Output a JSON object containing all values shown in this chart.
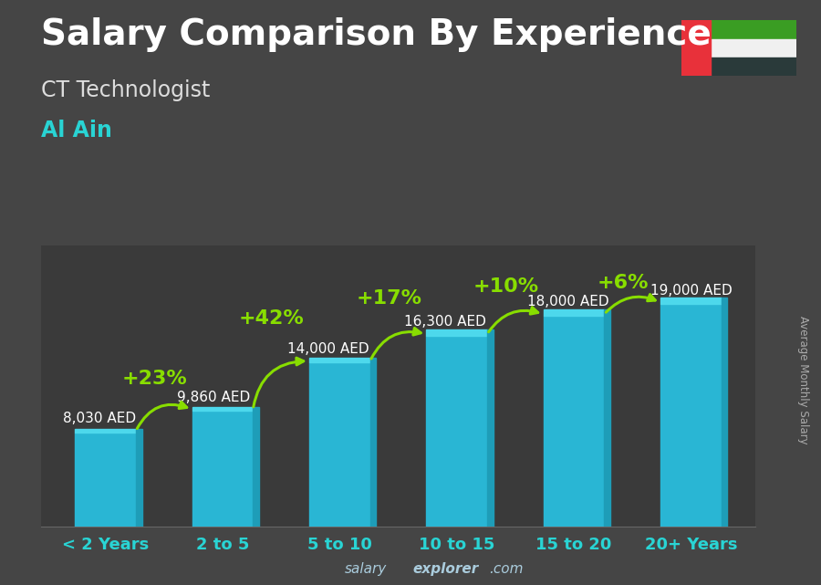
{
  "title": "Salary Comparison By Experience",
  "subtitle": "CT Technologist",
  "city": "Al Ain",
  "ylabel": "Average Monthly Salary",
  "footer_plain": "salary",
  "footer_bold": "explorer",
  "footer_end": ".com",
  "categories": [
    "< 2 Years",
    "2 to 5",
    "5 to 10",
    "10 to 15",
    "15 to 20",
    "20+ Years"
  ],
  "values": [
    8030,
    9860,
    14000,
    16300,
    18000,
    19000
  ],
  "bar_color": "#29b6d4",
  "bar_color_light": "#4dd8ec",
  "bar_color_dark": "#1a8fa3",
  "bar_color_right": "#1e9db8",
  "bg_color": "#3a3a3a",
  "title_color": "#ffffff",
  "subtitle_color": "#dddddd",
  "city_color": "#29d4d4",
  "percent_color": "#88dd00",
  "value_label_color": "#ffffff",
  "tick_color": "#29d4d4",
  "ylabel_color": "#aaaaaa",
  "footer_color": "#aaccdd",
  "value_labels": [
    "8,030 AED",
    "9,860 AED",
    "14,000 AED",
    "16,300 AED",
    "18,000 AED",
    "19,000 AED"
  ],
  "percent_labels": [
    "+23%",
    "+42%",
    "+17%",
    "+10%",
    "+6%"
  ],
  "title_fontsize": 28,
  "subtitle_fontsize": 17,
  "city_fontsize": 17,
  "tick_fontsize": 13,
  "value_fontsize": 11,
  "percent_fontsize": 16,
  "ylim": [
    0,
    24000
  ],
  "flag_colors": {
    "red": "#e8313a",
    "green": "#3a9d23",
    "white": "#f0f0f0",
    "black": "#2a3a3a"
  }
}
